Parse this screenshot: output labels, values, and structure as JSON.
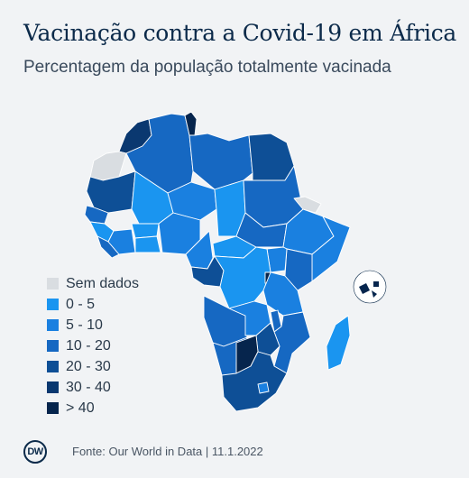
{
  "header": {
    "title": "Vacinação contra a Covid-19 em África",
    "subtitle": "Percentagem da população totalmente vacinada"
  },
  "legend": {
    "items": [
      {
        "label": "Sem dados",
        "color": "#d9dde1"
      },
      {
        "label": "0 - 5",
        "color": "#1a95f0"
      },
      {
        "label": "5 - 10",
        "color": "#1a80e0"
      },
      {
        "label": "10 - 20",
        "color": "#1668c2"
      },
      {
        "label": "20 - 30",
        "color": "#0e4f96"
      },
      {
        "label": "30 - 40",
        "color": "#0a3870"
      },
      {
        "label": "> 40",
        "color": "#06254d"
      }
    ]
  },
  "footer": {
    "logo_text": "DW",
    "source": "Fonte: Our World in Data  |  11.1.2022"
  }
}
